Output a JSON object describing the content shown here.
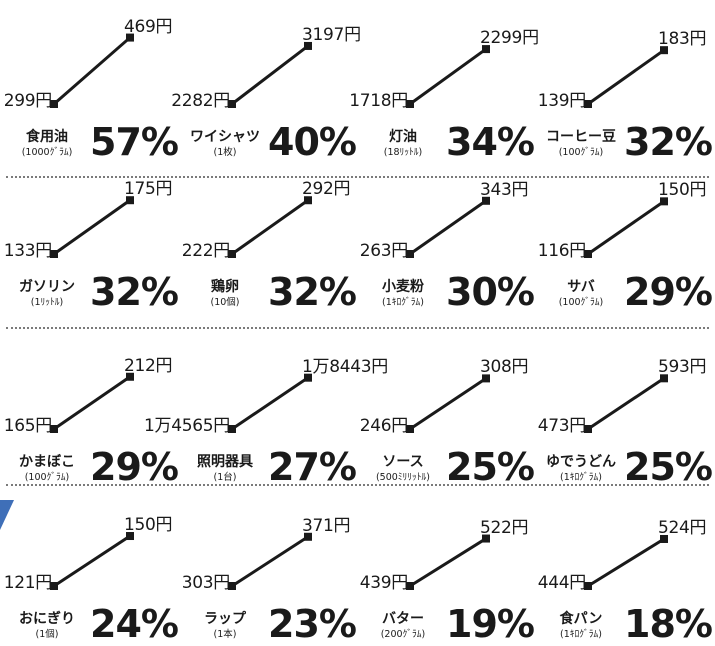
{
  "colors": {
    "line": "#1a1a1a",
    "divider": "#7a7a7a",
    "accent": "#3f6fb8"
  },
  "chart_data": {
    "type": "line",
    "currency_suffix": "円",
    "items": [
      {
        "name": "食用油",
        "unit": "(1000ｸﾞﾗﾑ)",
        "before": "299円",
        "after": "469円",
        "before_value": 299,
        "after_value": 469,
        "pct": "57%"
      },
      {
        "name": "ワイシャツ",
        "unit": "(1枚)",
        "before": "2282円",
        "after": "3197円",
        "before_value": 2282,
        "after_value": 3197,
        "pct": "40%"
      },
      {
        "name": "灯油",
        "unit": "(18ﾘｯﾄﾙ)",
        "before": "1718円",
        "after": "2299円",
        "before_value": 1718,
        "after_value": 2299,
        "pct": "34%"
      },
      {
        "name": "コーヒー豆",
        "unit": "(100ｸﾞﾗﾑ)",
        "before": "139円",
        "after": "183円",
        "before_value": 139,
        "after_value": 183,
        "pct": "32%"
      },
      {
        "name": "ガソリン",
        "unit": "(1ﾘｯﾄﾙ)",
        "before": "133円",
        "after": "175円",
        "before_value": 133,
        "after_value": 175,
        "pct": "32%"
      },
      {
        "name": "鶏卵",
        "unit": "(10個)",
        "before": "222円",
        "after": "292円",
        "before_value": 222,
        "after_value": 292,
        "pct": "32%"
      },
      {
        "name": "小麦粉",
        "unit": "(1ｷﾛｸﾞﾗﾑ)",
        "before": "263円",
        "after": "343円",
        "before_value": 263,
        "after_value": 343,
        "pct": "30%"
      },
      {
        "name": "サバ",
        "unit": "(100ｸﾞﾗﾑ)",
        "before": "116円",
        "after": "150円",
        "before_value": 116,
        "after_value": 150,
        "pct": "29%"
      },
      {
        "name": "かまぼこ",
        "unit": "(100ｸﾞﾗﾑ)",
        "before": "165円",
        "after": "212円",
        "before_value": 165,
        "after_value": 212,
        "pct": "29%"
      },
      {
        "name": "照明器具",
        "unit": "(1台)",
        "before": "1万4565円",
        "after": "1万8443円",
        "before_value": 14565,
        "after_value": 18443,
        "pct": "27%"
      },
      {
        "name": "ソース",
        "unit": "(500ﾐﾘﾘｯﾄﾙ)",
        "before": "246円",
        "after": "308円",
        "before_value": 246,
        "after_value": 308,
        "pct": "25%"
      },
      {
        "name": "ゆでうどん",
        "unit": "(1ｷﾛｸﾞﾗﾑ)",
        "before": "473円",
        "after": "593円",
        "before_value": 473,
        "after_value": 593,
        "pct": "25%"
      },
      {
        "name": "おにぎり",
        "unit": "(1個)",
        "before": "121円",
        "after": "150円",
        "before_value": 121,
        "after_value": 150,
        "pct": "24%"
      },
      {
        "name": "ラップ",
        "unit": "(1本)",
        "before": "303円",
        "after": "371円",
        "before_value": 303,
        "after_value": 371,
        "pct": "23%"
      },
      {
        "name": "バター",
        "unit": "(200ｸﾞﾗﾑ)",
        "before": "439円",
        "after": "522円",
        "before_value": 439,
        "after_value": 522,
        "pct": "19%"
      },
      {
        "name": "食パン",
        "unit": "(1ｷﾛｸﾞﾗﾑ)",
        "before": "444円",
        "after": "524円",
        "before_value": 444,
        "after_value": 524,
        "pct": "18%"
      }
    ]
  }
}
